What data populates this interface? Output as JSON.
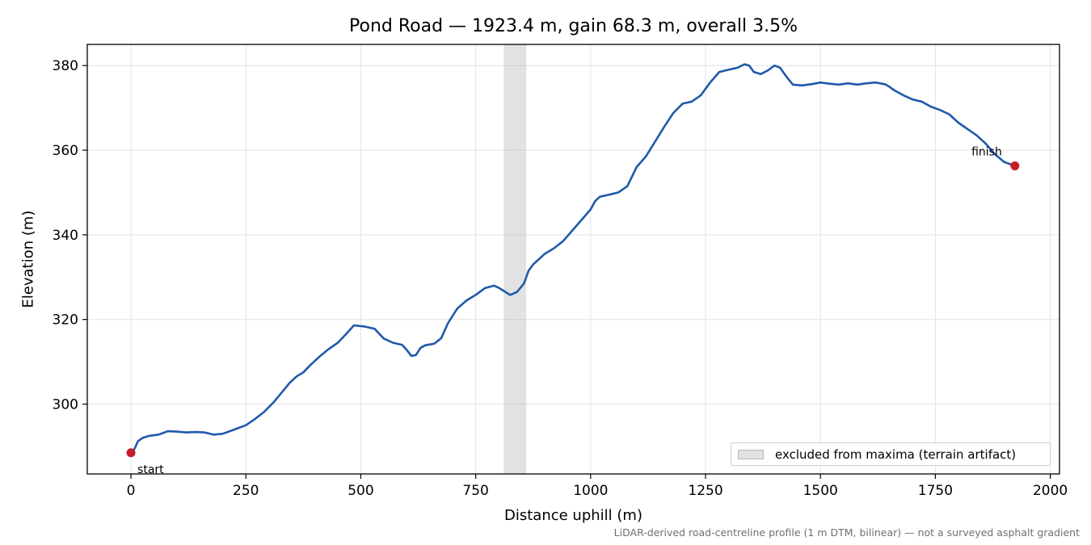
{
  "chart_data": {
    "type": "line",
    "title": "Pond Road — 1923.4 m, gain 68.3 m, overall 3.5%",
    "xlabel": "Distance uphill (m)",
    "ylabel": "Elevation (m)",
    "xlim": [
      -95,
      2020
    ],
    "ylim": [
      283.5,
      385
    ],
    "x_ticks": [
      0,
      250,
      500,
      750,
      1000,
      1250,
      1500,
      1750,
      2000
    ],
    "y_ticks": [
      300,
      320,
      340,
      360,
      380
    ],
    "grid": true,
    "legend_position": "lower-right",
    "colors": {
      "line": "#1f5aab",
      "marker": "#c41e2a",
      "band": "#a0a0a0"
    },
    "series": [
      {
        "x": [
          0,
          8,
          15,
          25,
          40,
          60,
          80,
          100,
          120,
          140,
          160,
          180,
          200,
          220,
          250,
          270,
          290,
          310,
          330,
          345,
          360,
          375,
          390,
          410,
          430,
          450,
          470,
          485,
          495,
          510,
          530,
          550,
          570,
          590,
          600,
          610,
          620,
          630,
          640,
          660,
          675,
          690,
          710,
          730,
          750,
          770,
          790,
          800,
          810,
          825,
          840,
          855,
          865,
          875,
          890,
          900,
          920,
          940,
          960,
          980,
          1000,
          1010,
          1020,
          1040,
          1060,
          1080,
          1100,
          1120,
          1140,
          1160,
          1180,
          1200,
          1220,
          1240,
          1260,
          1280,
          1300,
          1320,
          1335,
          1345,
          1355,
          1370,
          1385,
          1400,
          1412,
          1425,
          1440,
          1460,
          1480,
          1500,
          1520,
          1540,
          1560,
          1580,
          1600,
          1620,
          1640,
          1650,
          1660,
          1680,
          1700,
          1720,
          1740,
          1760,
          1780,
          1800,
          1820,
          1840,
          1860,
          1880,
          1900,
          1923
        ],
        "y": [
          288.5,
          289.5,
          291.2,
          292.0,
          292.5,
          292.8,
          293.6,
          293.5,
          293.3,
          293.4,
          293.3,
          292.8,
          293.0,
          293.8,
          295.0,
          296.5,
          298.2,
          300.4,
          303.0,
          305.0,
          306.5,
          307.5,
          309.2,
          311.2,
          313.0,
          314.5,
          316.8,
          318.6,
          318.5,
          318.3,
          317.8,
          315.5,
          314.5,
          314.0,
          312.8,
          311.4,
          311.6,
          313.3,
          313.9,
          314.3,
          315.6,
          319.2,
          322.6,
          324.5,
          325.8,
          327.4,
          328.0,
          327.5,
          326.8,
          325.8,
          326.5,
          328.5,
          331.5,
          333.0,
          334.5,
          335.5,
          336.8,
          338.5,
          341.0,
          343.5,
          346.0,
          348.0,
          349.0,
          349.5,
          350.0,
          351.5,
          356.0,
          358.5,
          362.0,
          365.5,
          368.8,
          371.0,
          371.5,
          373.0,
          376.0,
          378.5,
          379.0,
          379.5,
          380.3,
          380.0,
          378.5,
          378.0,
          378.8,
          380.0,
          379.5,
          377.5,
          375.5,
          375.3,
          375.6,
          376.0,
          375.7,
          375.5,
          375.8,
          375.5,
          375.8,
          376.0,
          375.6,
          375.0,
          374.2,
          373.0,
          372.0,
          371.5,
          370.3,
          369.5,
          368.5,
          366.5,
          365.0,
          363.5,
          361.5,
          359.0,
          357.2,
          356.3
        ]
      }
    ],
    "excluded_band": {
      "x_start": 811,
      "x_end": 860,
      "label": "excluded from maxima (terrain artifact)"
    },
    "annotations": [
      {
        "text": "start",
        "x": 0,
        "y": 288.5
      },
      {
        "text": "finish",
        "x": 1923,
        "y": 356.3
      }
    ],
    "footnote": "LiDAR-derived road-centreline profile (1 m DTM, bilinear) — not a surveyed asphalt gradient"
  }
}
